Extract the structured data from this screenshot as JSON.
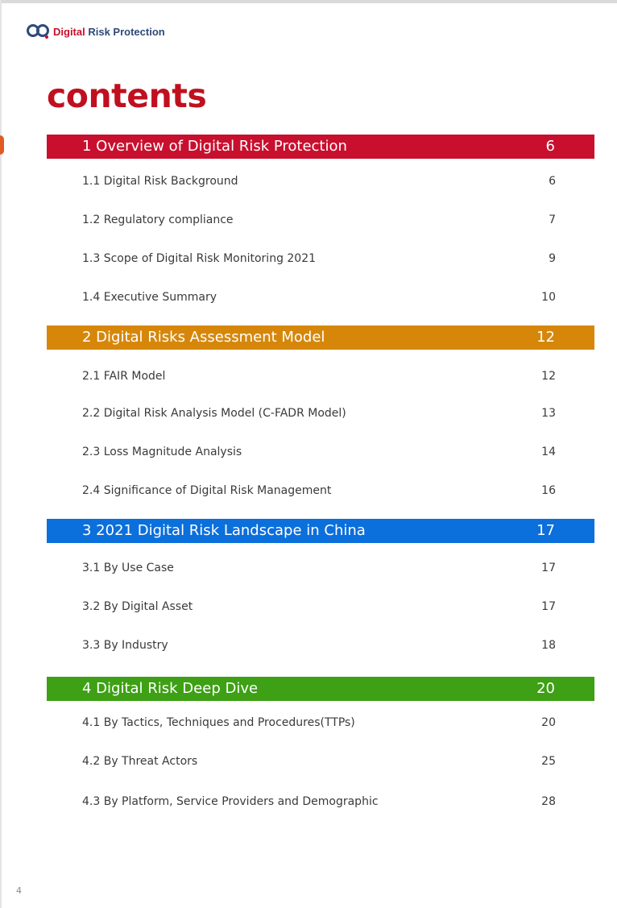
{
  "header": {
    "brand_accent": "Digital",
    "brand_rest": " Risk Protection",
    "logo_icon": "double-loop-logo-icon"
  },
  "title": "contents",
  "sections": [
    {
      "label": "1 Overview of Digital Risk Protection",
      "page": "6",
      "color": "#c8102e",
      "entries": [
        {
          "label": "1.1 Digital Risk Background",
          "page": "6"
        },
        {
          "label": "1.2 Regulatory compliance",
          "page": "7"
        },
        {
          "label": "1.3 Scope of Digital Risk Monitoring 2021",
          "page": "9"
        },
        {
          "label": "1.4 Executive Summary",
          "page": "10"
        }
      ]
    },
    {
      "label": "2 Digital Risks Assessment Model",
      "page": "12",
      "color": "#d6870a",
      "entries": [
        {
          "label": "2.1 FAIR Model",
          "page": "12"
        },
        {
          "label": "2.2 Digital Risk Analysis Model (C-FADR Model)",
          "page": "13"
        },
        {
          "label": "2.3 Loss Magnitude Analysis",
          "page": "14"
        },
        {
          "label": "2.4 Significance of Digital Risk Management",
          "page": "16"
        }
      ]
    },
    {
      "label": "3 2021 Digital Risk Landscape in China",
      "page": "17",
      "color": "#0b6fdc",
      "entries": [
        {
          "label": "3.1 By Use Case",
          "page": "17"
        },
        {
          "label": "3.2 By Digital Asset",
          "page": "17"
        },
        {
          "label": "3.3 By Industry",
          "page": "18"
        }
      ]
    },
    {
      "label": "4 Digital Risk Deep Dive",
      "page": "20",
      "color": "#3ea014",
      "entries": [
        {
          "label": "4.1 By Tactics, Techniques and Procedures(TTPs)",
          "page": "20"
        },
        {
          "label": "4.2 By Threat Actors",
          "page": "25"
        },
        {
          "label": "4.3 By Platform, Service Providers and Demographic",
          "page": "28"
        }
      ]
    }
  ],
  "footer": {
    "page_number": "4"
  }
}
